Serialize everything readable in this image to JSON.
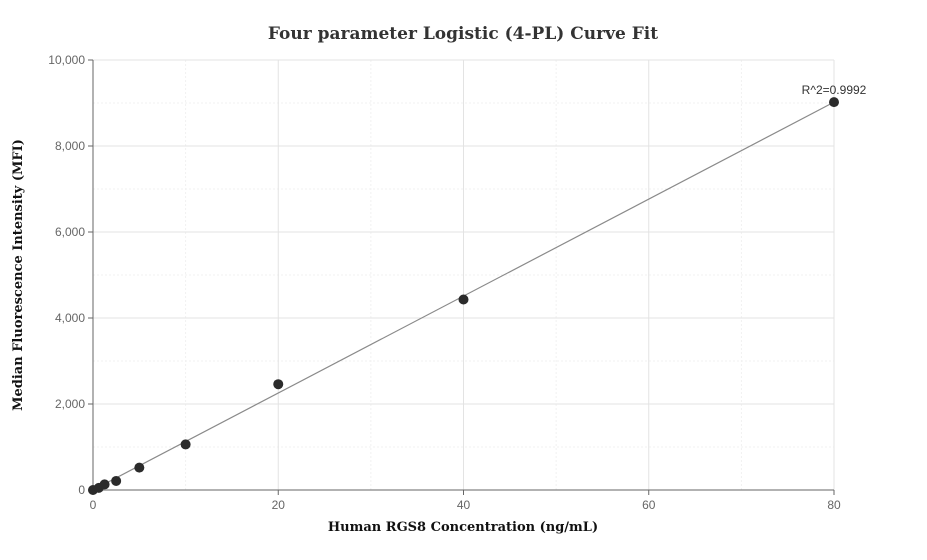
{
  "chart_data": {
    "type": "scatter",
    "title": "Four parameter Logistic (4-PL) Curve Fit",
    "xlabel": "Human RGS8 Concentration (ng/mL)",
    "ylabel": "Median Fluorescence Intensity (MFI)",
    "xlim": [
      0,
      80
    ],
    "ylim": [
      0,
      10000
    ],
    "x_ticks": [
      0,
      20,
      40,
      60,
      80
    ],
    "y_ticks": [
      0,
      2000,
      4000,
      6000,
      8000,
      10000
    ],
    "x_tick_labels": [
      "0",
      "20",
      "40",
      "60",
      "80"
    ],
    "y_tick_labels": [
      "0",
      "2,000",
      "4,000",
      "6,000",
      "8,000",
      "10,000"
    ],
    "grid": true,
    "legend": "none",
    "point_color": "#2b2b2b",
    "line_color": "#8a8a8a",
    "points": [
      {
        "x": 0,
        "y": 0
      },
      {
        "x": 0.625,
        "y": 50
      },
      {
        "x": 1.25,
        "y": 130
      },
      {
        "x": 2.5,
        "y": 210
      },
      {
        "x": 5,
        "y": 520
      },
      {
        "x": 10,
        "y": 1060
      },
      {
        "x": 20,
        "y": 2460
      },
      {
        "x": 40,
        "y": 4430
      },
      {
        "x": 80,
        "y": 9020
      }
    ],
    "fit_curve": [
      {
        "x": 0,
        "y": 0
      },
      {
        "x": 80,
        "y": 9020
      }
    ],
    "annotation": "R^2=0.9992"
  }
}
